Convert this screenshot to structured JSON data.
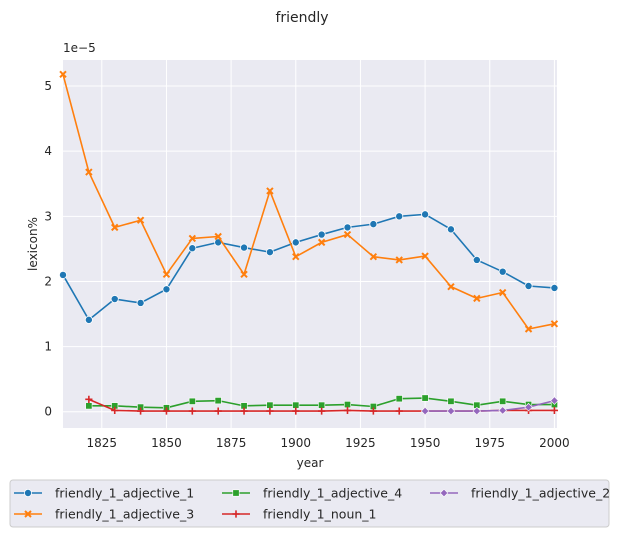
{
  "chart_data": {
    "type": "line",
    "title": "friendly",
    "xlabel": "year",
    "ylabel": "lexicon%",
    "y_scale_note": "1e−5",
    "xlim": [
      1810,
      2001
    ],
    "ylim": [
      -0.25,
      5.4
    ],
    "x_ticks": [
      1825,
      1850,
      1875,
      1900,
      1925,
      1950,
      1975,
      2000
    ],
    "y_ticks": [
      0,
      1,
      2,
      3,
      4,
      5
    ],
    "grid": true,
    "legend_placement": "bottom",
    "series": [
      {
        "name": "friendly_1_adjective_1",
        "color": "#1f77b4",
        "marker": "circle",
        "x": [
          1810,
          1820,
          1830,
          1840,
          1850,
          1860,
          1870,
          1880,
          1890,
          1900,
          1910,
          1920,
          1930,
          1940,
          1950,
          1960,
          1970,
          1980,
          1990,
          2000
        ],
        "y": [
          2.1,
          1.41,
          1.73,
          1.67,
          1.88,
          2.51,
          2.6,
          2.52,
          2.45,
          2.6,
          2.72,
          2.83,
          2.88,
          3.0,
          3.03,
          2.8,
          2.33,
          2.15,
          1.93,
          1.9
        ]
      },
      {
        "name": "friendly_1_adjective_3",
        "color": "#ff7f0e",
        "marker": "x",
        "x": [
          1810,
          1820,
          1830,
          1840,
          1850,
          1860,
          1870,
          1880,
          1890,
          1900,
          1910,
          1920,
          1930,
          1940,
          1950,
          1960,
          1970,
          1980,
          1990,
          2000
        ],
        "y": [
          5.18,
          3.68,
          2.83,
          2.94,
          2.11,
          2.66,
          2.69,
          2.11,
          3.39,
          2.38,
          2.6,
          2.72,
          2.38,
          2.33,
          2.39,
          1.92,
          1.74,
          1.83,
          1.27,
          1.35
        ]
      },
      {
        "name": "friendly_1_adjective_4",
        "color": "#2ca02c",
        "marker": "square",
        "x": [
          1820,
          1830,
          1840,
          1850,
          1860,
          1870,
          1880,
          1890,
          1900,
          1910,
          1920,
          1930,
          1940,
          1950,
          1960,
          1970,
          1980,
          1990,
          2000
        ],
        "y": [
          0.09,
          0.09,
          0.07,
          0.06,
          0.16,
          0.17,
          0.09,
          0.1,
          0.1,
          0.1,
          0.11,
          0.08,
          0.2,
          0.21,
          0.16,
          0.1,
          0.16,
          0.11,
          0.11
        ]
      },
      {
        "name": "friendly_1_noun_1",
        "color": "#d62728",
        "marker": "plus",
        "x": [
          1820,
          1830,
          1840,
          1850,
          1860,
          1870,
          1880,
          1890,
          1900,
          1910,
          1920,
          1930,
          1940,
          1950,
          1960,
          1970,
          1980,
          1990,
          2000
        ],
        "y": [
          0.19,
          0.02,
          0.01,
          0.01,
          0.01,
          0.01,
          0.01,
          0.01,
          0.01,
          0.01,
          0.02,
          0.01,
          0.01,
          0.01,
          0.01,
          0.01,
          0.02,
          0.02,
          0.02
        ]
      },
      {
        "name": "friendly_1_adjective_2",
        "color": "#9467bd",
        "marker": "diamond",
        "x": [
          1950,
          1960,
          1970,
          1980,
          1990,
          2000
        ],
        "y": [
          0.01,
          0.01,
          0.01,
          0.02,
          0.07,
          0.17
        ]
      }
    ]
  }
}
